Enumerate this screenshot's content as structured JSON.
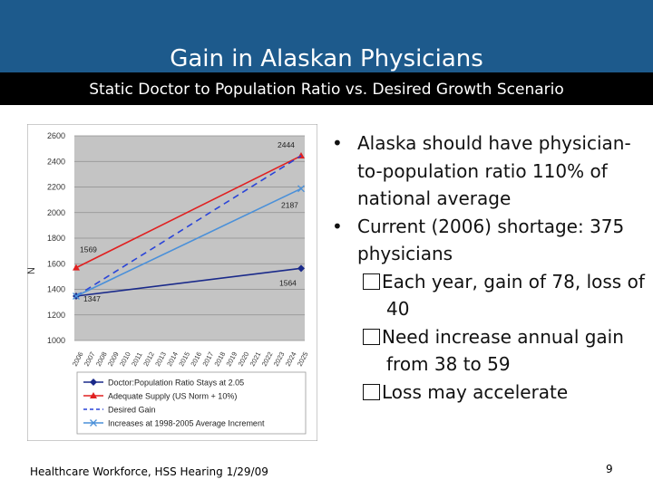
{
  "slide": {
    "title": "Gain in Alaskan Physicians",
    "subtitle": "Static Doctor to Population Ratio vs. Desired Growth Scenario",
    "footer": "Healthcare Workforce, HSS Hearing 1/29/09",
    "page_number": "9",
    "colors": {
      "header": "#1d5a8c",
      "subbar": "#000000"
    }
  },
  "bullets": [
    {
      "text": "Alaska should have physician-to-population ratio 110% of national average"
    },
    {
      "text": "Current (2006) shortage: 375 physicians"
    }
  ],
  "sub_bullets": [
    {
      "text": "Each year, gain of 78, loss of 40"
    },
    {
      "text": "Need increase annual gain from 38 to 59"
    },
    {
      "text": "Loss may accelerate"
    }
  ],
  "chart_data": {
    "type": "line",
    "ylabel": "N",
    "ylim": [
      1000,
      2600
    ],
    "yticks": [
      "1000",
      "1200",
      "1400",
      "1600",
      "1800",
      "2000",
      "2200",
      "2400",
      "2600"
    ],
    "x": [
      2006,
      2007,
      2008,
      2009,
      2010,
      2011,
      2012,
      2013,
      2014,
      2015,
      2016,
      2017,
      2018,
      2019,
      2020,
      2021,
      2022,
      2023,
      2024,
      2025
    ],
    "grid": true,
    "legend": "bottom",
    "series": [
      {
        "name": "Doctor:Population Ratio Stays at 2.05",
        "color": "#1a2a8a",
        "dash": "",
        "marker": "diamond",
        "start": 1347,
        "end": 1564
      },
      {
        "name": "Adequate Supply (US Norm + 10%)",
        "color": "#e02020",
        "dash": "",
        "marker": "triangle",
        "start": 1569,
        "end": 2444
      },
      {
        "name": "Desired Gain",
        "color": "#2a44d8",
        "dash": "7,5",
        "marker": "none",
        "start": 1347,
        "end": 2444
      },
      {
        "name": "Increases at 1998-2005 Average Increment",
        "color": "#4a90d9",
        "dash": "",
        "marker": "x",
        "start": 1347,
        "end": 2187
      }
    ],
    "annotations": [
      "1347",
      "1569",
      "1564",
      "2187",
      "2444"
    ]
  }
}
